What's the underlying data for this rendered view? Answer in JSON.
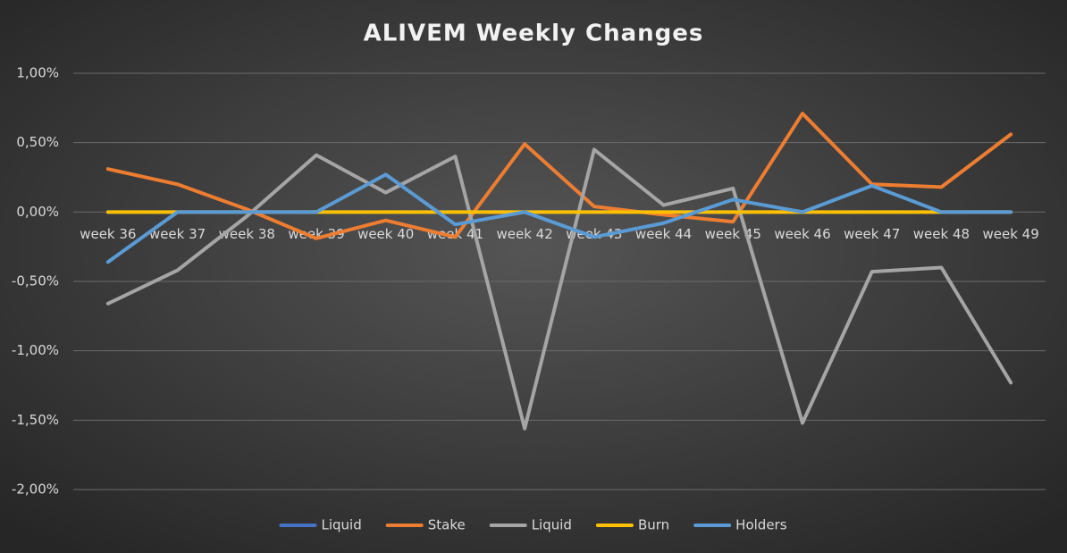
{
  "chart_data": {
    "type": "line",
    "title": "ALIVEM Weekly Changes",
    "categories": [
      "week 36",
      "week 37",
      "week 38",
      "week 39",
      "week 40",
      "week 41",
      "week 42",
      "week 43",
      "week 44",
      "week 45",
      "week 46",
      "week 47",
      "week 48",
      "week 49"
    ],
    "series": [
      {
        "name": "Liquid",
        "color": "#4472c4",
        "values": [
          0,
          0,
          0,
          0,
          0,
          0,
          0,
          0,
          0,
          0,
          0,
          0,
          0,
          0
        ]
      },
      {
        "name": "Stake",
        "color": "#ed7d31",
        "values": [
          0.31,
          0.2,
          0.02,
          -0.19,
          -0.06,
          -0.18,
          0.49,
          0.04,
          -0.02,
          -0.07,
          0.71,
          0.2,
          0.18,
          0.56
        ]
      },
      {
        "name": "Liquid",
        "color": "#a5a5a5",
        "values": [
          -0.66,
          -0.42,
          -0.03,
          0.41,
          0.14,
          0.4,
          -1.56,
          0.45,
          0.05,
          0.17,
          -1.52,
          -0.43,
          -0.4,
          -1.23
        ]
      },
      {
        "name": "Burn",
        "color": "#ffc000",
        "values": [
          0,
          0,
          0,
          0,
          0,
          0,
          0,
          0,
          0,
          0,
          0,
          0,
          0,
          0
        ]
      },
      {
        "name": "Holders",
        "color": "#5b9bd5",
        "values": [
          -0.36,
          0,
          0,
          0,
          0.27,
          -0.09,
          0,
          -0.18,
          -0.08,
          0.09,
          0,
          0.19,
          0,
          0
        ]
      }
    ],
    "ylim": [
      -2,
      1
    ],
    "yticks": [
      {
        "value": -2,
        "label": "-2,00%"
      },
      {
        "value": -1.5,
        "label": "-1,50%"
      },
      {
        "value": -1,
        "label": "-1,00%"
      },
      {
        "value": -0.5,
        "label": "-0,50%"
      },
      {
        "value": 0,
        "label": "0,00%"
      },
      {
        "value": 0.5,
        "label": "0,50%"
      },
      {
        "value": 1,
        "label": "1,00%"
      }
    ],
    "grid": true,
    "legend": "bottom"
  }
}
